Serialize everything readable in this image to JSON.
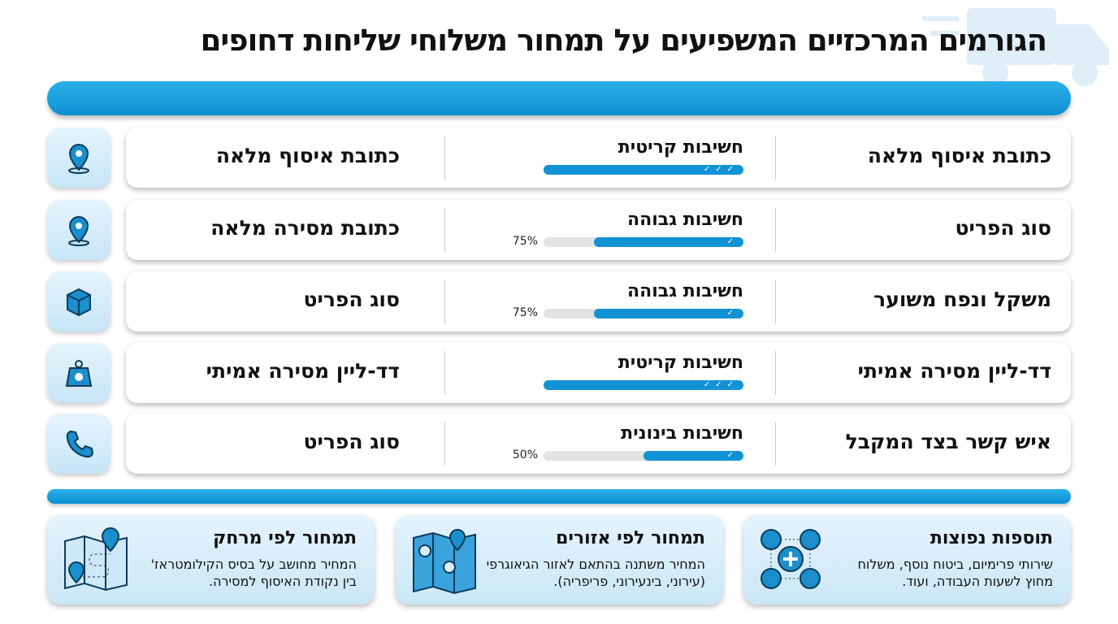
{
  "title": "הגורמים המרכזיים המשפיעים על תמחור משלוחי שליחות דחופים",
  "colors": {
    "accent": "#1192d5",
    "track": "#e3e3e3",
    "card_bg": "#d6ecf9"
  },
  "rows": [
    {
      "factor": "כתובת איסוף מלאה",
      "importance": "חשיבות קריטית",
      "level_percent": 100,
      "checks": "✓✓✓",
      "percent_label": "",
      "detail": "כתובת איסוף מלאה",
      "icon": "location-pin-icon"
    },
    {
      "factor": "סוג הפריט",
      "importance": "חשיבות גבוהה",
      "level_percent": 75,
      "checks": "✓",
      "percent_label": "75%",
      "detail": "כתובת מסירה מלאה",
      "icon": "location-pin-icon"
    },
    {
      "factor": "משקל ונפח משוער",
      "importance": "חשיבות גבוהה",
      "level_percent": 75,
      "checks": "✓",
      "percent_label": "75%",
      "detail": "סוג הפריט",
      "icon": "package-box-icon"
    },
    {
      "factor": "דד-ליין מסירה אמיתי",
      "importance": "חשיבות קריטית",
      "level_percent": 100,
      "checks": "✓✓✓",
      "percent_label": "",
      "detail": "דד-ליין מסירה אמיתי",
      "icon": "weight-icon"
    },
    {
      "factor": "איש קשר בצד המקבל",
      "importance": "חשיבות בינונית",
      "level_percent": 50,
      "checks": "✓",
      "percent_label": "50%",
      "detail": "סוג הפריט",
      "icon": "phone-icon"
    }
  ],
  "bottom": [
    {
      "title": "תוספות נפוצות",
      "desc": "שירותי פרימיום, ביטוח נוסף, משלוח מחוץ לשעות העבודה, ועוד.",
      "icon": "add-ons-icon"
    },
    {
      "title": "תמחור לפי אזורים",
      "desc": "המחיר משתנה בהתאם לאזור הגיאוגרפי (עירוני, בינעירוני, פריפריה).",
      "icon": "zones-map-icon"
    },
    {
      "title": "תמחור לפי מרחק",
      "desc": "המחיר מחושב על בסיס הקילומטראז' בין נקודת האיסוף למסירה.",
      "icon": "route-map-icon"
    }
  ]
}
